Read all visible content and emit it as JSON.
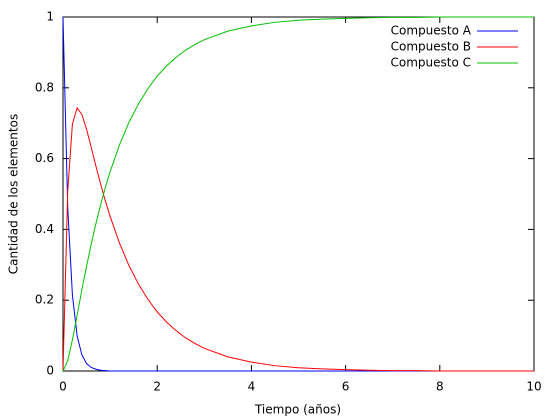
{
  "chart_data": {
    "type": "line",
    "xlabel": "Tiempo (años)",
    "ylabel": "Cantidad de los elementos",
    "x": [
      0,
      0.1,
      0.2,
      0.3,
      0.4,
      0.5,
      0.6,
      0.7,
      0.8,
      0.9,
      1.0,
      1.2,
      1.4,
      1.6,
      1.8,
      2.0,
      2.2,
      2.4,
      2.6,
      2.8,
      3.0,
      3.5,
      4.0,
      4.5,
      5.0,
      5.5,
      6.0,
      6.5,
      7.0,
      7.5,
      8.0,
      8.5,
      9.0,
      9.5,
      10
    ],
    "series": [
      {
        "name": "Compuesto A",
        "color": "#0000ff",
        "values": [
          1,
          0.463,
          0.214,
          0.099,
          0.046,
          0.021,
          0.01,
          0.005,
          0.002,
          0.001,
          0,
          0,
          0,
          0,
          0,
          0,
          0,
          0,
          0,
          0,
          0,
          0,
          0,
          0,
          0,
          0,
          0,
          0,
          0,
          0,
          0,
          0,
          0,
          0,
          0
        ]
      },
      {
        "name": "Compuesto B",
        "color": "#ff0000",
        "values": [
          0,
          0.508,
          0.698,
          0.743,
          0.725,
          0.683,
          0.631,
          0.578,
          0.528,
          0.48,
          0.437,
          0.361,
          0.298,
          0.246,
          0.203,
          0.167,
          0.138,
          0.114,
          0.094,
          0.078,
          0.064,
          0.04,
          0.025,
          0.015,
          0.009,
          0.006,
          0.004,
          0.002,
          0.001,
          0.001,
          0,
          0,
          0,
          0,
          0
        ]
      },
      {
        "name": "Compuesto C",
        "color": "#00c000",
        "values": [
          0,
          0.029,
          0.088,
          0.158,
          0.229,
          0.296,
          0.359,
          0.417,
          0.47,
          0.519,
          0.563,
          0.639,
          0.702,
          0.754,
          0.797,
          0.833,
          0.862,
          0.886,
          0.906,
          0.922,
          0.936,
          0.96,
          0.975,
          0.985,
          0.991,
          0.994,
          0.996,
          0.998,
          0.999,
          0.999,
          1,
          1,
          1,
          1,
          1
        ]
      }
    ],
    "xlim": [
      0,
      10
    ],
    "xticks": [
      0,
      2,
      4,
      6,
      8,
      10
    ],
    "ylim": [
      0,
      1
    ],
    "yticks": [
      0,
      0.2,
      0.4,
      0.6,
      0.8,
      1
    ],
    "legend": "top right"
  }
}
